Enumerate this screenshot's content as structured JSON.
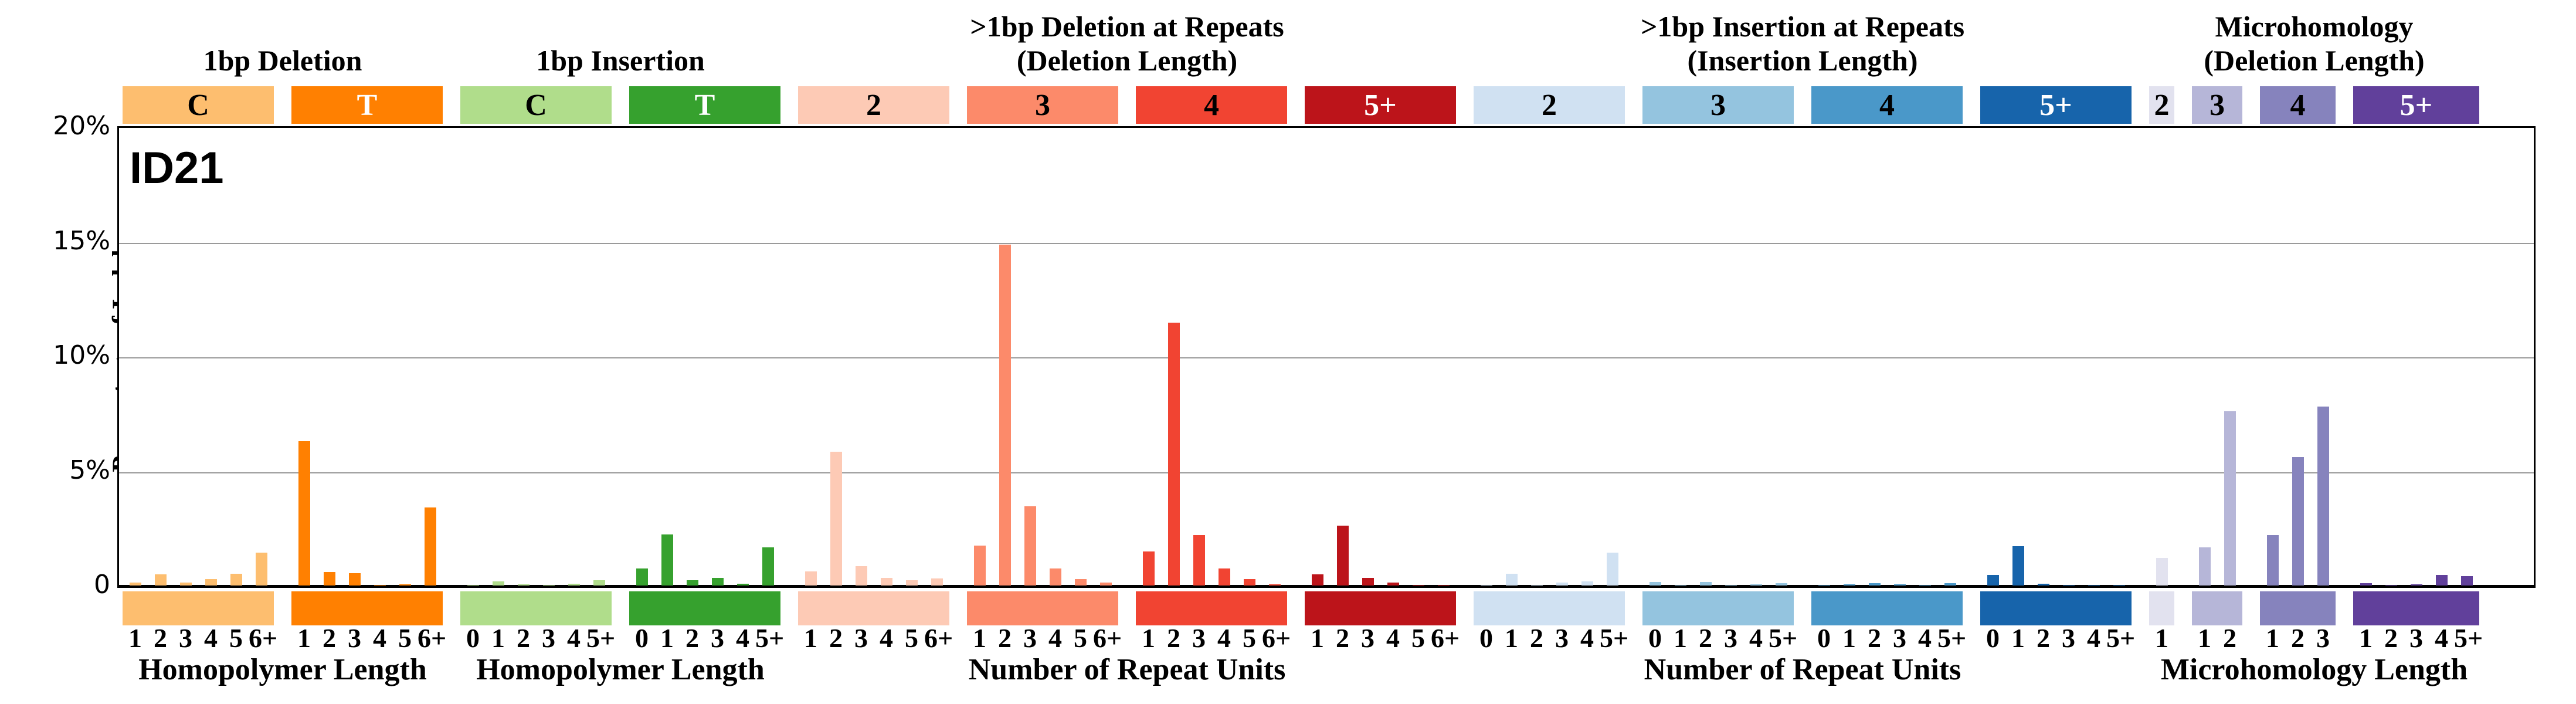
{
  "title": "ID21",
  "y_axis": {
    "label": "Percentage of Indels",
    "ticks": [
      "20%",
      "15%",
      "10%",
      "5%",
      "0"
    ],
    "max_percent": 20
  },
  "chart_data": {
    "type": "bar",
    "title": "ID21",
    "xlabel": "",
    "ylabel": "Percentage of Indels",
    "ylim": [
      0,
      20
    ],
    "y_tick_labels": [
      "20%",
      "15%",
      "10%",
      "5%",
      "0"
    ],
    "grid": "horizontal-gridlines-at-5-10-15",
    "unit": "percent-of-indels",
    "super_headers": [
      {
        "label": "1bp Deletion",
        "group_span": [
          0,
          1
        ]
      },
      {
        "label": "1bp Insertion",
        "group_span": [
          2,
          3
        ]
      },
      {
        "label": ">1bp Deletion at Repeats\n(Deletion Length)",
        "group_span": [
          4,
          7
        ]
      },
      {
        "label": ">1bp Insertion at Repeats\n(Insertion Length)",
        "group_span": [
          8,
          11
        ]
      },
      {
        "label": "Microhomology\n(Deletion Length)",
        "group_span": [
          12,
          15
        ]
      }
    ],
    "x_axis_labels": [
      {
        "label": "Homopolymer Length",
        "group_span": [
          0,
          1
        ]
      },
      {
        "label": "Homopolymer Length",
        "group_span": [
          2,
          3
        ]
      },
      {
        "label": "Number of Repeat Units",
        "group_span": [
          4,
          7
        ]
      },
      {
        "label": "Number of Repeat Units",
        "group_span": [
          8,
          11
        ]
      },
      {
        "label": "Microhomology Length",
        "group_span": [
          12,
          15
        ]
      }
    ],
    "groups": [
      {
        "key": "1bp-deletion-C",
        "header": "C",
        "color": "#FDBE6F",
        "header_text_color": "#000000",
        "labels": [
          "1",
          "2",
          "3",
          "4",
          "5",
          "6+"
        ],
        "values": [
          0.14,
          0.48,
          0.13,
          0.27,
          0.51,
          1.43
        ]
      },
      {
        "key": "1bp-deletion-T",
        "header": "T",
        "color": "#FF8001",
        "header_text_color": "#FFFFFF",
        "labels": [
          "1",
          "2",
          "3",
          "4",
          "5",
          "6+"
        ],
        "values": [
          6.28,
          0.6,
          0.53,
          0.02,
          0.05,
          3.4
        ]
      },
      {
        "key": "1bp-insertion-C",
        "header": "C",
        "color": "#B0DD8B",
        "header_text_color": "#000000",
        "labels": [
          "0",
          "1",
          "2",
          "3",
          "4",
          "5+"
        ],
        "values": [
          0.02,
          0.19,
          0.04,
          0.03,
          0.08,
          0.24
        ]
      },
      {
        "key": "1bp-insertion-T",
        "header": "T",
        "color": "#36A12E",
        "header_text_color": "#FFFFFF",
        "labels": [
          "0",
          "1",
          "2",
          "3",
          "4",
          "5+"
        ],
        "values": [
          0.74,
          2.22,
          0.22,
          0.32,
          0.08,
          1.66
        ]
      },
      {
        "key": "deletion-repeats-len2",
        "header": "2",
        "color": "#FDCAB5",
        "header_text_color": "#000000",
        "labels": [
          "1",
          "2",
          "3",
          "4",
          "5",
          "6+"
        ],
        "values": [
          0.61,
          5.82,
          0.84,
          0.32,
          0.23,
          0.31
        ]
      },
      {
        "key": "deletion-repeats-len3",
        "header": "3",
        "color": "#FC8A6A",
        "header_text_color": "#000000",
        "labels": [
          "1",
          "2",
          "3",
          "4",
          "5",
          "6+"
        ],
        "values": [
          1.73,
          14.85,
          3.46,
          0.74,
          0.27,
          0.14
        ]
      },
      {
        "key": "deletion-repeats-len4",
        "header": "4",
        "color": "#F14432",
        "header_text_color": "#000000",
        "labels": [
          "1",
          "2",
          "3",
          "4",
          "5",
          "6+"
        ],
        "values": [
          1.48,
          11.45,
          2.2,
          0.73,
          0.27,
          0.05
        ]
      },
      {
        "key": "deletion-repeats-len5plus",
        "header": "5+",
        "color": "#BC141A",
        "header_text_color": "#FFFFFF",
        "labels": [
          "1",
          "2",
          "3",
          "4",
          "5",
          "6+"
        ],
        "values": [
          0.49,
          2.6,
          0.32,
          0.12,
          0.03,
          0.02
        ]
      },
      {
        "key": "insertion-repeats-len2",
        "header": "2",
        "color": "#D0E1F2",
        "header_text_color": "#000000",
        "labels": [
          "0",
          "1",
          "2",
          "3",
          "4",
          "5+"
        ],
        "values": [
          0.02,
          0.5,
          0.02,
          0.14,
          0.19,
          1.42
        ]
      },
      {
        "key": "insertion-repeats-len3",
        "header": "3",
        "color": "#94C4DF",
        "header_text_color": "#000000",
        "labels": [
          "0",
          "1",
          "2",
          "3",
          "4",
          "5+"
        ],
        "values": [
          0.15,
          0.02,
          0.15,
          0.03,
          0.04,
          0.1
        ]
      },
      {
        "key": "insertion-repeats-len4",
        "header": "4",
        "color": "#4A98C9",
        "header_text_color": "#000000",
        "labels": [
          "0",
          "1",
          "2",
          "3",
          "4",
          "5+"
        ],
        "values": [
          0.02,
          0.05,
          0.1,
          0.05,
          0.02,
          0.1
        ]
      },
      {
        "key": "insertion-repeats-len5plus",
        "header": "5+",
        "color": "#1764AB",
        "header_text_color": "#FFFFFF",
        "labels": [
          "0",
          "1",
          "2",
          "3",
          "4",
          "5+"
        ],
        "values": [
          0.47,
          1.71,
          0.08,
          0.02,
          0.01,
          0.01
        ]
      },
      {
        "key": "microhomology-len2",
        "header": "2",
        "color": "#E2E2EF",
        "header_text_color": "#000000",
        "labels": [
          "1"
        ],
        "values": [
          1.2
        ]
      },
      {
        "key": "microhomology-len3",
        "header": "3",
        "color": "#B6B6D8",
        "header_text_color": "#000000",
        "labels": [
          "1",
          "2"
        ],
        "values": [
          1.65,
          7.6
        ]
      },
      {
        "key": "microhomology-len4",
        "header": "4",
        "color": "#8683BD",
        "header_text_color": "#000000",
        "labels": [
          "1",
          "2",
          "3"
        ],
        "values": [
          2.2,
          5.6,
          7.8
        ]
      },
      {
        "key": "microhomology-len5plus",
        "header": "5+",
        "color": "#61409B",
        "header_text_color": "#FFFFFF",
        "labels": [
          "1",
          "2",
          "3",
          "4",
          "5+"
        ],
        "values": [
          0.1,
          0.02,
          0.05,
          0.45,
          0.4
        ]
      }
    ]
  }
}
